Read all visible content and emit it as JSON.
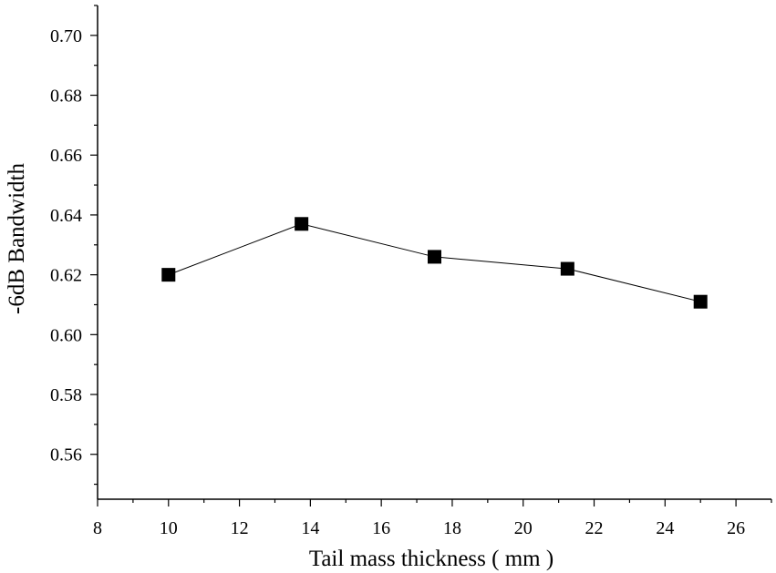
{
  "chart_data": {
    "type": "line",
    "title": "",
    "xlabel": "Tail mass thickness ( mm )",
    "ylabel": "-6dB Bandwidth",
    "xlim": [
      8,
      27
    ],
    "ylim": [
      0.545,
      0.71
    ],
    "x_ticks": [
      8,
      10,
      12,
      14,
      16,
      18,
      20,
      22,
      24,
      26
    ],
    "y_ticks": [
      0.56,
      0.58,
      0.6,
      0.62,
      0.64,
      0.66,
      0.68,
      0.7
    ],
    "grid": false,
    "legend": "none",
    "series": [
      {
        "marker": "square",
        "color": "#000000",
        "x": [
          10,
          13.75,
          17.5,
          21.25,
          25
        ],
        "y": [
          0.62,
          0.637,
          0.626,
          0.622,
          0.611
        ]
      }
    ]
  }
}
